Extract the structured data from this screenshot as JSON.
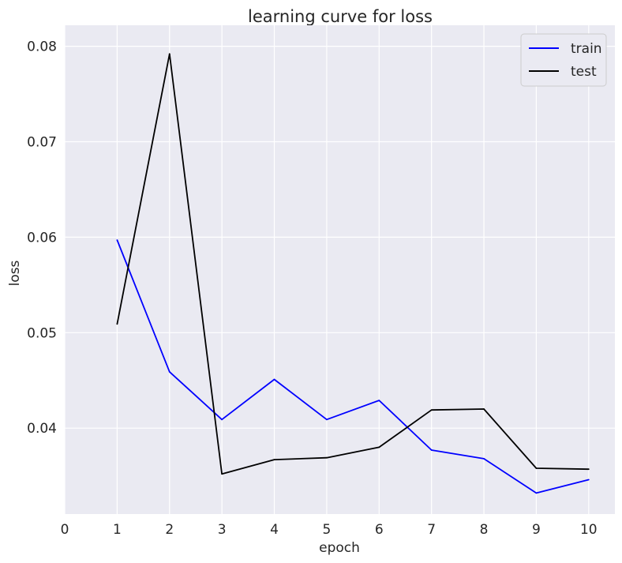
{
  "chart_data": {
    "type": "line",
    "title": "learning curve for loss",
    "xlabel": "epoch",
    "ylabel": "loss",
    "x": [
      1,
      2,
      3,
      4,
      5,
      6,
      7,
      8,
      9,
      10
    ],
    "xlim": [
      0,
      10.5
    ],
    "ylim": [
      0.031,
      0.0822
    ],
    "xticks": [
      "0",
      "1",
      "2",
      "3",
      "4",
      "5",
      "6",
      "7",
      "8",
      "9",
      "10"
    ],
    "yticks": [
      "0.04",
      "0.05",
      "0.06",
      "0.07",
      "0.08"
    ],
    "grid": true,
    "legend_position": "top-right",
    "background_color": "#eaeaf2",
    "grid_color": "#ffffff",
    "series": [
      {
        "name": "train",
        "color": "#0000ff",
        "values": [
          0.0597,
          0.0459,
          0.0409,
          0.0451,
          0.0409,
          0.0429,
          0.0377,
          0.0368,
          0.0332,
          0.0346
        ]
      },
      {
        "name": "test",
        "color": "#000000",
        "values": [
          0.0509,
          0.0792,
          0.0352,
          0.0367,
          0.0369,
          0.038,
          0.0419,
          0.042,
          0.0358,
          0.0357
        ]
      }
    ]
  }
}
